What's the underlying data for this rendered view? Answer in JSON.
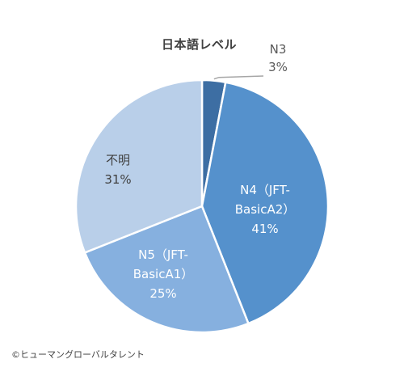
{
  "chart_data": {
    "type": "pie",
    "title": "日本語レベル",
    "slices": [
      {
        "label": "N3",
        "value": 3,
        "pct_label": "3%",
        "color": "#3d6ea3",
        "label_color": "#595959"
      },
      {
        "label_lines": [
          "N4（JFT-",
          "BasicA2）"
        ],
        "value": 41,
        "pct_label": "41%",
        "color": "#5591cc",
        "label_color": "#ffffff"
      },
      {
        "label_lines": [
          "N5（JFT-",
          "BasicA1）"
        ],
        "value": 25,
        "pct_label": "25%",
        "color": "#86b0df",
        "label_color": "#ffffff"
      },
      {
        "label": "不明",
        "value": 31,
        "pct_label": "31%",
        "color": "#b9cfe9",
        "label_color": "#404040"
      }
    ],
    "start_angle_deg": 0,
    "direction": "clockwise"
  },
  "footer": {
    "copyright": "©ヒューマングローバルタレント"
  }
}
